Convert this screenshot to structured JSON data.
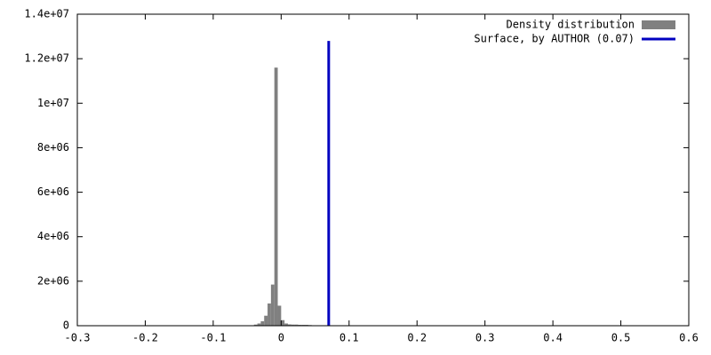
{
  "chart_data": {
    "type": "histogram",
    "bins": [
      -0.05,
      -0.045,
      -0.04,
      -0.035,
      -0.03,
      -0.025,
      -0.02,
      -0.015,
      -0.01,
      -0.005,
      0,
      0.005,
      0.01,
      0.015,
      0.02,
      0.025,
      0.03,
      0.035,
      0.04,
      0.045,
      0.05
    ],
    "series": [
      {
        "name": "Density distribution",
        "color": "#808080",
        "values": [
          10000,
          20000,
          50000,
          100000,
          200000,
          450000,
          1000000,
          1850000,
          11600000,
          900000,
          250000,
          100000,
          60000,
          50000,
          50000,
          40000,
          40000,
          40000,
          30000,
          20000
        ]
      }
    ],
    "lines": [
      {
        "name": "Surface, by AUTHOR (0.07)",
        "color": "#0000c0",
        "x": [
          0.07,
          0.07
        ],
        "y": [
          0,
          12800000
        ]
      }
    ],
    "xlim": [
      -0.3,
      0.6
    ],
    "xticks": [
      -0.3,
      -0.2,
      -0.1,
      0,
      0.1,
      0.2,
      0.3,
      0.4,
      0.5,
      0.6
    ],
    "ylim": [
      0,
      14000000
    ],
    "yticks": [
      0,
      {
        "value": 2000000,
        "label": "2e+06"
      },
      {
        "value": 4000000,
        "label": "4e+06"
      },
      {
        "value": 6000000,
        "label": "6e+06"
      },
      {
        "value": 8000000,
        "label": "8e+06"
      },
      {
        "value": 10000000,
        "label": "1e+07"
      },
      {
        "value": 12000000,
        "label": "1.2e+07"
      },
      {
        "value": 14000000,
        "label": "1.4e+07"
      }
    ],
    "legend": "upper right"
  }
}
